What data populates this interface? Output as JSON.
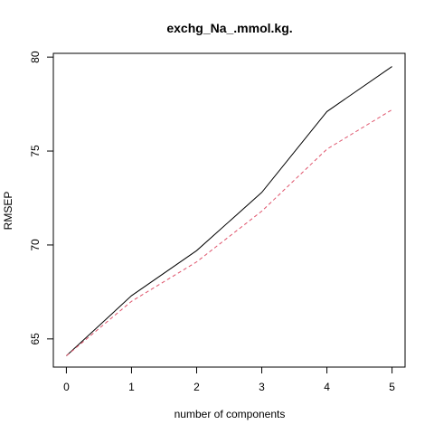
{
  "chart_data": {
    "type": "line",
    "title": "exchg_Na_.mmol.kg.",
    "xlabel": "number of components",
    "ylabel": "RMSEP",
    "x": [
      0,
      1,
      2,
      3,
      4,
      5
    ],
    "xticks": [
      "0",
      "1",
      "2",
      "3",
      "4",
      "5"
    ],
    "yticks": [
      "65",
      "70",
      "75",
      "80"
    ],
    "xlim": [
      -0.2,
      5.2
    ],
    "ylim": [
      63.5,
      80.2
    ],
    "grid": false,
    "series": [
      {
        "values": [
          64.1,
          67.3,
          69.7,
          72.8,
          77.1,
          79.5
        ],
        "color": "#000000",
        "style": "solid"
      },
      {
        "values": [
          64.1,
          67.0,
          69.1,
          71.8,
          75.1,
          77.2
        ],
        "color": "#DF536B",
        "style": "dashed"
      }
    ]
  }
}
